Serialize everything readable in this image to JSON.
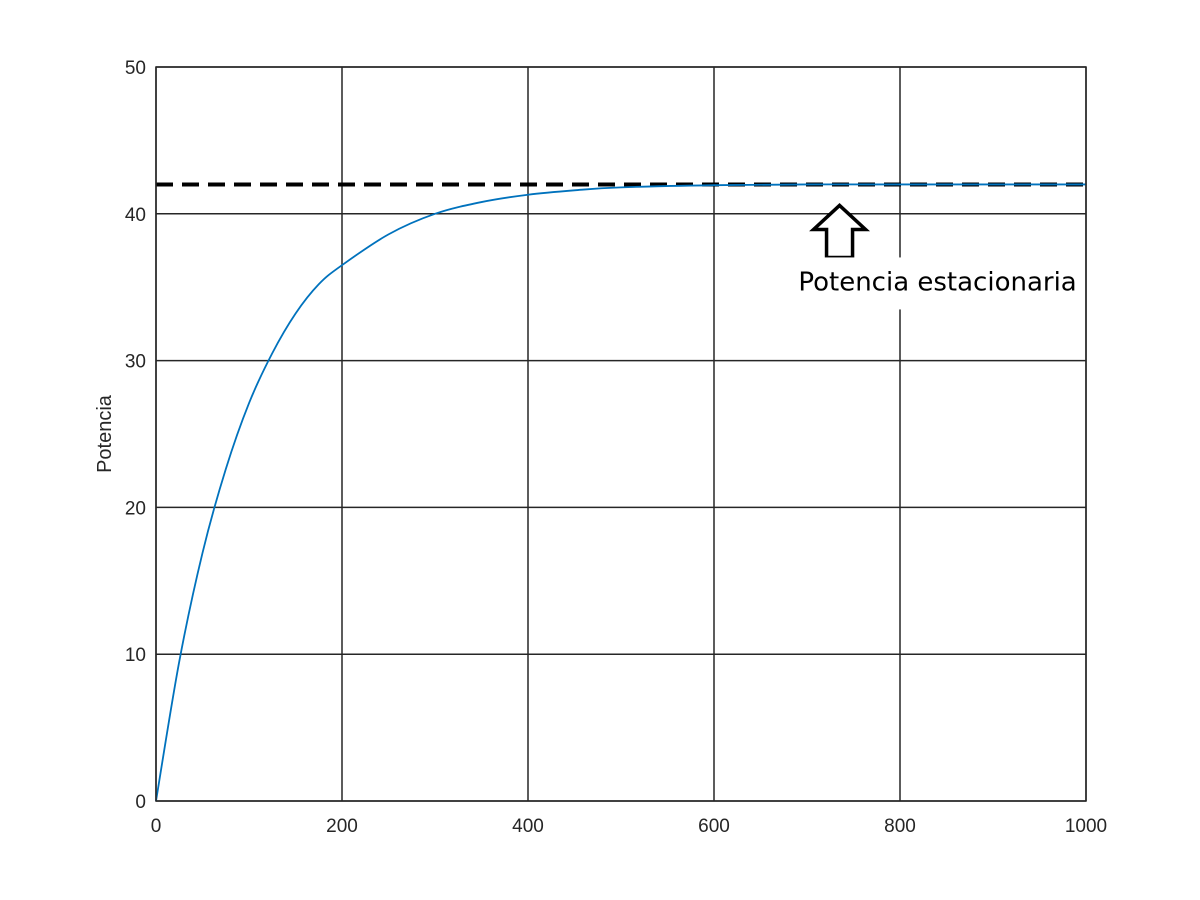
{
  "chart_data": {
    "type": "line",
    "title": "",
    "xlabel": "",
    "ylabel": "Potencia",
    "xlim": [
      0,
      1000
    ],
    "ylim": [
      0,
      50
    ],
    "xticks": [
      0,
      200,
      400,
      600,
      800,
      1000
    ],
    "yticks": [
      0,
      10,
      20,
      30,
      40,
      50
    ],
    "xtick_labels": [
      "0",
      "200",
      "400",
      "600",
      "800",
      "1000"
    ],
    "ytick_labels": [
      "0",
      "10",
      "20",
      "30",
      "40",
      "50"
    ],
    "grid": true,
    "series": [
      {
        "color": "#0072bd",
        "style": "solid",
        "x": [
          0,
          25,
          50,
          75,
          100,
          125,
          150,
          175,
          200,
          250,
          300,
          350,
          400,
          450,
          500,
          600,
          700,
          800,
          900,
          1000
        ],
        "y": [
          0,
          9.5,
          16.9,
          22.6,
          27.1,
          30.5,
          33.2,
          35.2,
          36.5,
          38.6,
          40.0,
          40.8,
          41.3,
          41.6,
          41.8,
          41.95,
          42.0,
          42.0,
          42.0,
          42.0
        ]
      }
    ],
    "reference_lines": [
      {
        "axis": "y",
        "value": 42,
        "style": "dashed",
        "color": "#000000"
      }
    ],
    "annotations": [
      {
        "text": "Potencia estacionaria",
        "points_to": {
          "x": 735,
          "y": 42
        },
        "marker": "up-arrow-outline"
      }
    ]
  }
}
